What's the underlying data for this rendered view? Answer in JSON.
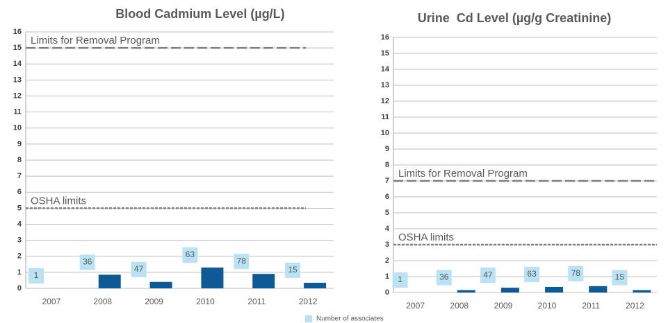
{
  "chart_data": [
    {
      "type": "bar",
      "title": "Blood Cadmium Level (µg/L)",
      "categories": [
        "2007",
        "2008",
        "2009",
        "2010",
        "2011",
        "2012"
      ],
      "values": [
        0,
        0.85,
        0.4,
        1.3,
        0.9,
        0.35
      ],
      "color": "#0d5a96",
      "associates": [
        1,
        36,
        47,
        63,
        78,
        15
      ],
      "ylim": [
        0,
        16
      ],
      "yticks": [
        0,
        1,
        2,
        3,
        4,
        5,
        6,
        7,
        8,
        9,
        10,
        11,
        12,
        13,
        14,
        15,
        16
      ],
      "grid": true,
      "reference_lines": [
        {
          "label": "Limits for Removal Program",
          "value": 15,
          "dash": "long"
        },
        {
          "label": "OSHA limits",
          "value": 5,
          "dash": "short"
        }
      ]
    },
    {
      "type": "bar",
      "title": "Urine  Cd Level (µg/g Creatinine)",
      "categories": [
        "2007",
        "2008",
        "2009",
        "2010",
        "2011",
        "2012"
      ],
      "values": [
        0,
        0.15,
        0.3,
        0.35,
        0.4,
        0.15
      ],
      "color": "#0d5a96",
      "associates": [
        1,
        36,
        47,
        63,
        78,
        15
      ],
      "ylim": [
        0,
        16
      ],
      "yticks": [
        0,
        1,
        2,
        3,
        4,
        5,
        6,
        7,
        8,
        9,
        10,
        11,
        12,
        13,
        14,
        15,
        16
      ],
      "grid": true,
      "reference_lines": [
        {
          "label": "Limits for Removal Program",
          "value": 7,
          "dash": "long"
        },
        {
          "label": "OSHA limits",
          "value": 3,
          "dash": "short"
        }
      ]
    }
  ],
  "legend": {
    "label": "Number of associates",
    "color": "#b9e2f4"
  }
}
